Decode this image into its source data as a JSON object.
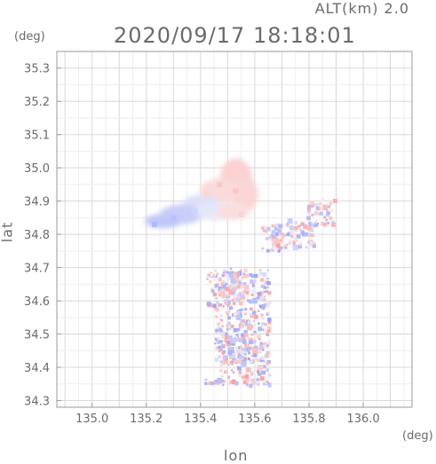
{
  "chart_data": {
    "type": "heatmap",
    "title": "2020/09/17 18:18:01",
    "subtitle": "ALT(km) 2.0",
    "xlabel": "lon",
    "ylabel": "lat",
    "x_unit": "(deg)",
    "y_unit": "(deg)",
    "xlim": [
      134.87,
      136.18
    ],
    "ylim": [
      34.28,
      35.35
    ],
    "xticks": [
      "135.0",
      "135.2",
      "135.4",
      "135.6",
      "135.8",
      "136.0"
    ],
    "yticks": [
      "34.3",
      "34.4",
      "34.5",
      "34.6",
      "34.7",
      "34.8",
      "34.9",
      "35.0",
      "35.1",
      "35.2",
      "35.3"
    ],
    "grid": true,
    "colors": {
      "positive": "#f4a6a6",
      "negative": "#a9b1f2",
      "neutral": "#efeef8",
      "axis": "#9a9a9a"
    },
    "regions": [
      {
        "lon": 135.53,
        "lat": 34.93,
        "value": 0.5
      },
      {
        "lon": 135.47,
        "lat": 34.95,
        "value": 0.45
      },
      {
        "lon": 135.42,
        "lat": 34.92,
        "value": 0.3
      },
      {
        "lon": 135.38,
        "lat": 34.87,
        "value": -0.3
      },
      {
        "lon": 135.3,
        "lat": 34.85,
        "value": -0.6
      },
      {
        "lon": 135.23,
        "lat": 34.83,
        "value": -0.7
      },
      {
        "lon": 135.45,
        "lat": 34.85,
        "value": 0.1
      },
      {
        "lon": 135.55,
        "lat": 34.86,
        "value": 0.35
      },
      {
        "lon": 135.73,
        "lat": 34.84,
        "value": -0.4
      },
      {
        "lon": 135.8,
        "lat": 34.82,
        "value": 0.6
      },
      {
        "lon": 135.86,
        "lat": 34.88,
        "value": 0.6
      },
      {
        "lon": 135.68,
        "lat": 34.78,
        "value": 0.5
      },
      {
        "lon": 135.75,
        "lat": 34.76,
        "value": -0.3
      },
      {
        "lon": 135.52,
        "lat": 34.66,
        "value": -0.5
      },
      {
        "lon": 135.57,
        "lat": 34.64,
        "value": 0.4
      },
      {
        "lon": 135.6,
        "lat": 34.6,
        "value": -0.6
      },
      {
        "lon": 135.48,
        "lat": 34.62,
        "value": 0.5
      },
      {
        "lon": 135.54,
        "lat": 34.55,
        "value": -0.5
      },
      {
        "lon": 135.58,
        "lat": 34.52,
        "value": 0.6
      },
      {
        "lon": 135.52,
        "lat": 34.48,
        "value": -0.4
      },
      {
        "lon": 135.6,
        "lat": 34.45,
        "value": 0.5
      },
      {
        "lon": 135.56,
        "lat": 34.41,
        "value": -0.5
      },
      {
        "lon": 135.62,
        "lat": 34.4,
        "value": 0.4
      },
      {
        "lon": 135.47,
        "lat": 34.36,
        "value": -0.6
      }
    ]
  }
}
